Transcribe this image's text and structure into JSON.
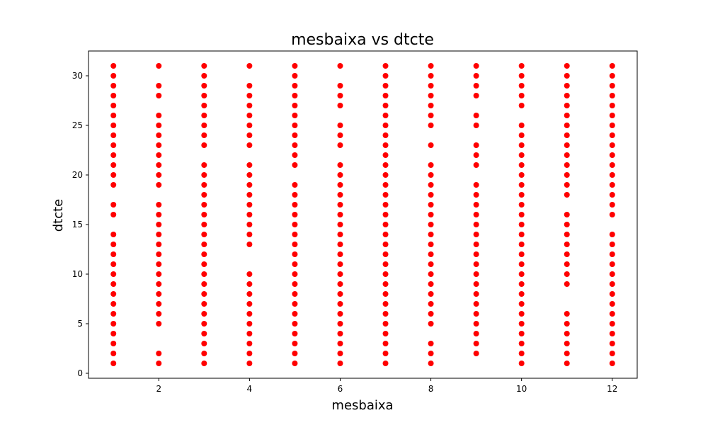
{
  "chart_data": {
    "type": "scatter",
    "title": "mesbaixa vs dtcte",
    "xlabel": "mesbaixa",
    "ylabel": "dtcte",
    "xlim": [
      0.45,
      12.55
    ],
    "ylim": [
      -0.5,
      32.5
    ],
    "x_ticks": [
      2,
      4,
      6,
      8,
      10,
      12
    ],
    "y_ticks": [
      0,
      5,
      10,
      15,
      20,
      25,
      30
    ],
    "grid": false,
    "legend": "none",
    "marker_color": "#ff0000",
    "series": [
      {
        "points_by_x": [
          {
            "x": 1,
            "y": [
              1,
              2,
              3,
              4,
              5,
              6,
              7,
              8,
              9,
              10,
              11,
              12,
              13,
              14,
              16,
              17,
              19,
              20,
              21,
              22,
              23,
              24,
              25,
              26,
              27,
              28,
              29,
              30,
              31
            ]
          },
          {
            "x": 2,
            "y": [
              1,
              2,
              5,
              6,
              7,
              8,
              9,
              10,
              11,
              12,
              13,
              14,
              15,
              16,
              17,
              19,
              20,
              21,
              22,
              23,
              24,
              25,
              26,
              28,
              29,
              31
            ]
          },
          {
            "x": 3,
            "y": [
              1,
              2,
              3,
              4,
              5,
              6,
              7,
              8,
              9,
              10,
              11,
              12,
              13,
              14,
              15,
              16,
              17,
              18,
              19,
              20,
              21,
              23,
              24,
              25,
              26,
              27,
              28,
              29,
              30,
              31
            ]
          },
          {
            "x": 4,
            "y": [
              1,
              2,
              3,
              4,
              5,
              6,
              7,
              8,
              9,
              10,
              13,
              14,
              15,
              16,
              17,
              18,
              19,
              20,
              21,
              23,
              24,
              25,
              26,
              27,
              28,
              29,
              31
            ]
          },
          {
            "x": 5,
            "y": [
              1,
              2,
              3,
              4,
              5,
              6,
              7,
              8,
              9,
              10,
              11,
              12,
              13,
              14,
              15,
              16,
              17,
              18,
              19,
              21,
              22,
              23,
              24,
              25,
              26,
              27,
              28,
              29,
              30,
              31
            ]
          },
          {
            "x": 6,
            "y": [
              1,
              2,
              3,
              4,
              5,
              6,
              7,
              8,
              9,
              10,
              11,
              12,
              13,
              14,
              15,
              16,
              17,
              18,
              19,
              20,
              21,
              23,
              24,
              25,
              27,
              28,
              29,
              31
            ]
          },
          {
            "x": 7,
            "y": [
              1,
              2,
              3,
              4,
              5,
              6,
              7,
              8,
              9,
              10,
              11,
              12,
              13,
              14,
              15,
              16,
              17,
              18,
              19,
              20,
              21,
              22,
              23,
              24,
              25,
              26,
              27,
              28,
              29,
              30,
              31
            ]
          },
          {
            "x": 8,
            "y": [
              1,
              2,
              3,
              5,
              6,
              7,
              8,
              9,
              10,
              11,
              12,
              13,
              14,
              15,
              16,
              17,
              18,
              19,
              20,
              21,
              23,
              25,
              26,
              27,
              28,
              29,
              30,
              31
            ]
          },
          {
            "x": 9,
            "y": [
              2,
              3,
              4,
              5,
              6,
              7,
              8,
              9,
              10,
              11,
              12,
              13,
              14,
              15,
              16,
              17,
              18,
              19,
              21,
              22,
              23,
              25,
              26,
              28,
              29,
              30,
              31
            ]
          },
          {
            "x": 10,
            "y": [
              1,
              2,
              3,
              4,
              5,
              6,
              7,
              8,
              9,
              10,
              11,
              12,
              13,
              14,
              15,
              16,
              17,
              18,
              19,
              20,
              21,
              22,
              23,
              24,
              25,
              27,
              28,
              29,
              30,
              31
            ]
          },
          {
            "x": 11,
            "y": [
              1,
              2,
              3,
              4,
              5,
              6,
              9,
              10,
              11,
              12,
              13,
              14,
              15,
              16,
              18,
              19,
              20,
              21,
              22,
              23,
              24,
              25,
              26,
              27,
              28,
              29,
              30,
              31
            ]
          },
          {
            "x": 12,
            "y": [
              1,
              2,
              3,
              4,
              5,
              6,
              7,
              8,
              9,
              10,
              11,
              12,
              13,
              14,
              16,
              17,
              18,
              19,
              20,
              21,
              22,
              23,
              24,
              25,
              26,
              27,
              28,
              29,
              30,
              31
            ]
          }
        ]
      }
    ]
  }
}
